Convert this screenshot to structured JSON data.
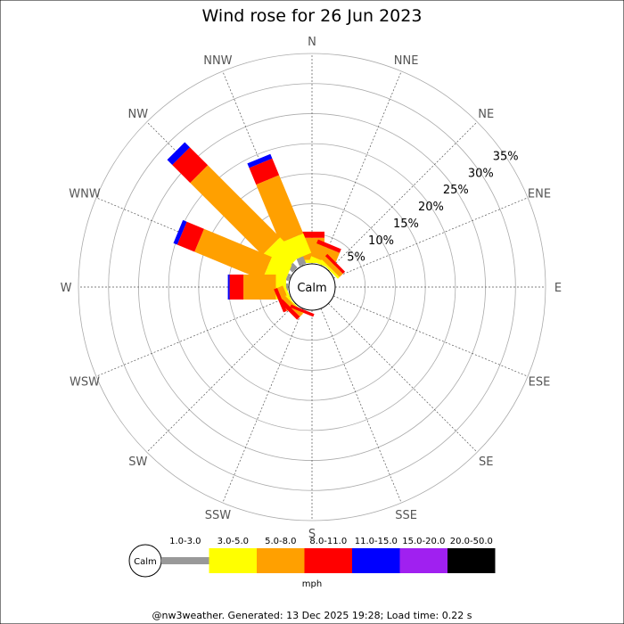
{
  "chart_data": {
    "type": "wind-rose",
    "title": "Wind rose for 26 Jun 2023",
    "directions": [
      "N",
      "NNE",
      "NE",
      "ENE",
      "E",
      "ESE",
      "SE",
      "SSE",
      "S",
      "SSW",
      "SW",
      "WSW",
      "W",
      "WNW",
      "NW",
      "NNW"
    ],
    "ring_labels": [
      "5%",
      "10%",
      "15%",
      "20%",
      "25%",
      "30%",
      "35%"
    ],
    "ring_values": [
      5,
      10,
      15,
      20,
      25,
      30,
      35
    ],
    "rmax": 35,
    "calm_label": "Calm",
    "speed_bins": [
      {
        "label": "1.0-3.0",
        "color": "#999999"
      },
      {
        "label": "3.0-5.0",
        "color": "#ffff00"
      },
      {
        "label": "5.0-8.0",
        "color": "#ffa000"
      },
      {
        "label": "8.0-11.0",
        "color": "#ff0000"
      },
      {
        "label": "11.0-15.0",
        "color": "#0000ff"
      },
      {
        "label": "15.0-20.0",
        "color": "#a020f0"
      },
      {
        "label": "20.0-50.0",
        "color": "#000000"
      }
    ],
    "unit_label": "mph",
    "series": [
      {
        "direction": "N",
        "values": [
          0.0,
          0.5,
          3.7,
          1.0,
          0.0,
          0,
          0
        ]
      },
      {
        "direction": "NNE",
        "values": [
          0.0,
          0.7,
          2.3,
          0.7,
          0.0,
          0,
          0
        ]
      },
      {
        "direction": "NE",
        "values": [
          0.0,
          0.4,
          0.8,
          0.5,
          0.0,
          0,
          0
        ]
      },
      {
        "direction": "NNW",
        "values": [
          1.3,
          3.5,
          10.5,
          3.0,
          0.8,
          0,
          0
        ]
      },
      {
        "direction": "NW",
        "values": [
          1.1,
          4.5,
          17.0,
          4.2,
          1.2,
          0,
          0
        ]
      },
      {
        "direction": "WNW",
        "values": [
          0.5,
          3.6,
          12.2,
          3.1,
          0.7,
          0,
          0
        ]
      },
      {
        "direction": "W",
        "values": [
          0.3,
          1.7,
          5.4,
          2.3,
          0.3,
          0,
          0
        ]
      },
      {
        "direction": "WSW",
        "values": [
          0.0,
          0.4,
          1.0,
          0.6,
          0.0,
          0,
          0
        ]
      },
      {
        "direction": "SW",
        "values": [
          0.0,
          0.2,
          0.7,
          0.7,
          0.0,
          0,
          0
        ]
      },
      {
        "direction": "SSW",
        "values": [
          0.0,
          0.0,
          0.0,
          0.5,
          0.0,
          0,
          0
        ]
      }
    ]
  },
  "footer": "@nw3weather. Generated: 13 Dec 2025 19:28; Load time: 0.22 s"
}
